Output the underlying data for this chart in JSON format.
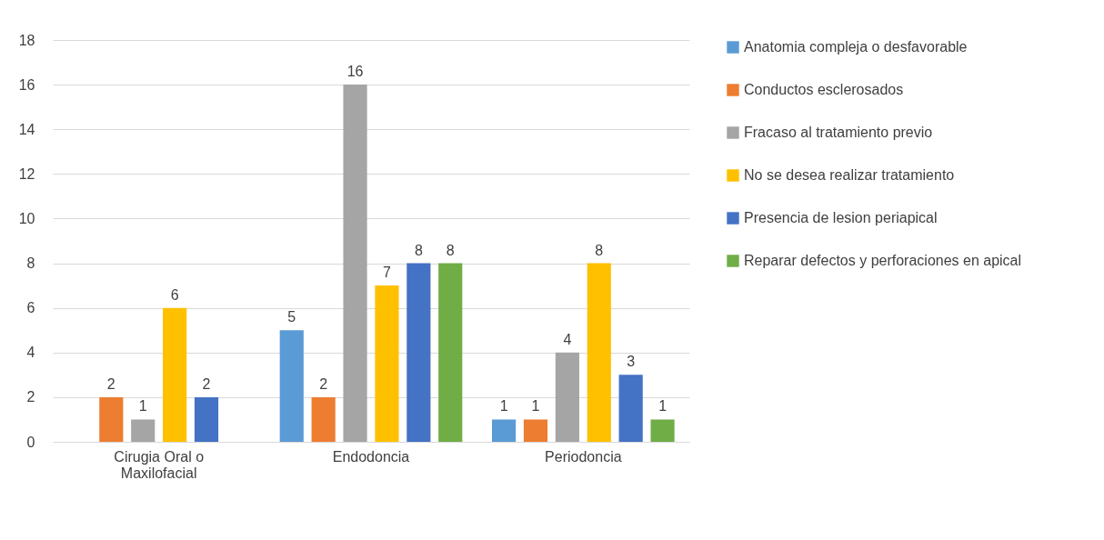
{
  "chart_data": {
    "type": "bar",
    "categories": [
      "Cirugia Oral o Maxilofacial",
      "Endodoncia",
      "Periodoncia"
    ],
    "series": [
      {
        "name": "Anatomia compleja o desfavorable",
        "color": "#5b9bd5",
        "values": [
          null,
          5,
          1
        ]
      },
      {
        "name": "Conductos esclerosados",
        "color": "#ed7d31",
        "values": [
          2,
          2,
          1
        ]
      },
      {
        "name": "Fracaso al tratamiento previo",
        "color": "#a5a5a5",
        "values": [
          1,
          16,
          4
        ]
      },
      {
        "name": "No se desea realizar tratamiento",
        "color": "#ffc000",
        "values": [
          6,
          7,
          8
        ]
      },
      {
        "name": "Presencia de lesion periapical",
        "color": "#4472c4",
        "values": [
          2,
          8,
          3
        ]
      },
      {
        "name": "Reparar defectos y perforaciones en apical",
        "color": "#70ad47",
        "values": [
          null,
          8,
          1
        ]
      }
    ],
    "ylim": [
      0,
      18
    ],
    "yticks": [
      0,
      2,
      4,
      6,
      8,
      10,
      12,
      14,
      16,
      18
    ],
    "grid": "y",
    "legend": "right",
    "data_labels": true
  }
}
